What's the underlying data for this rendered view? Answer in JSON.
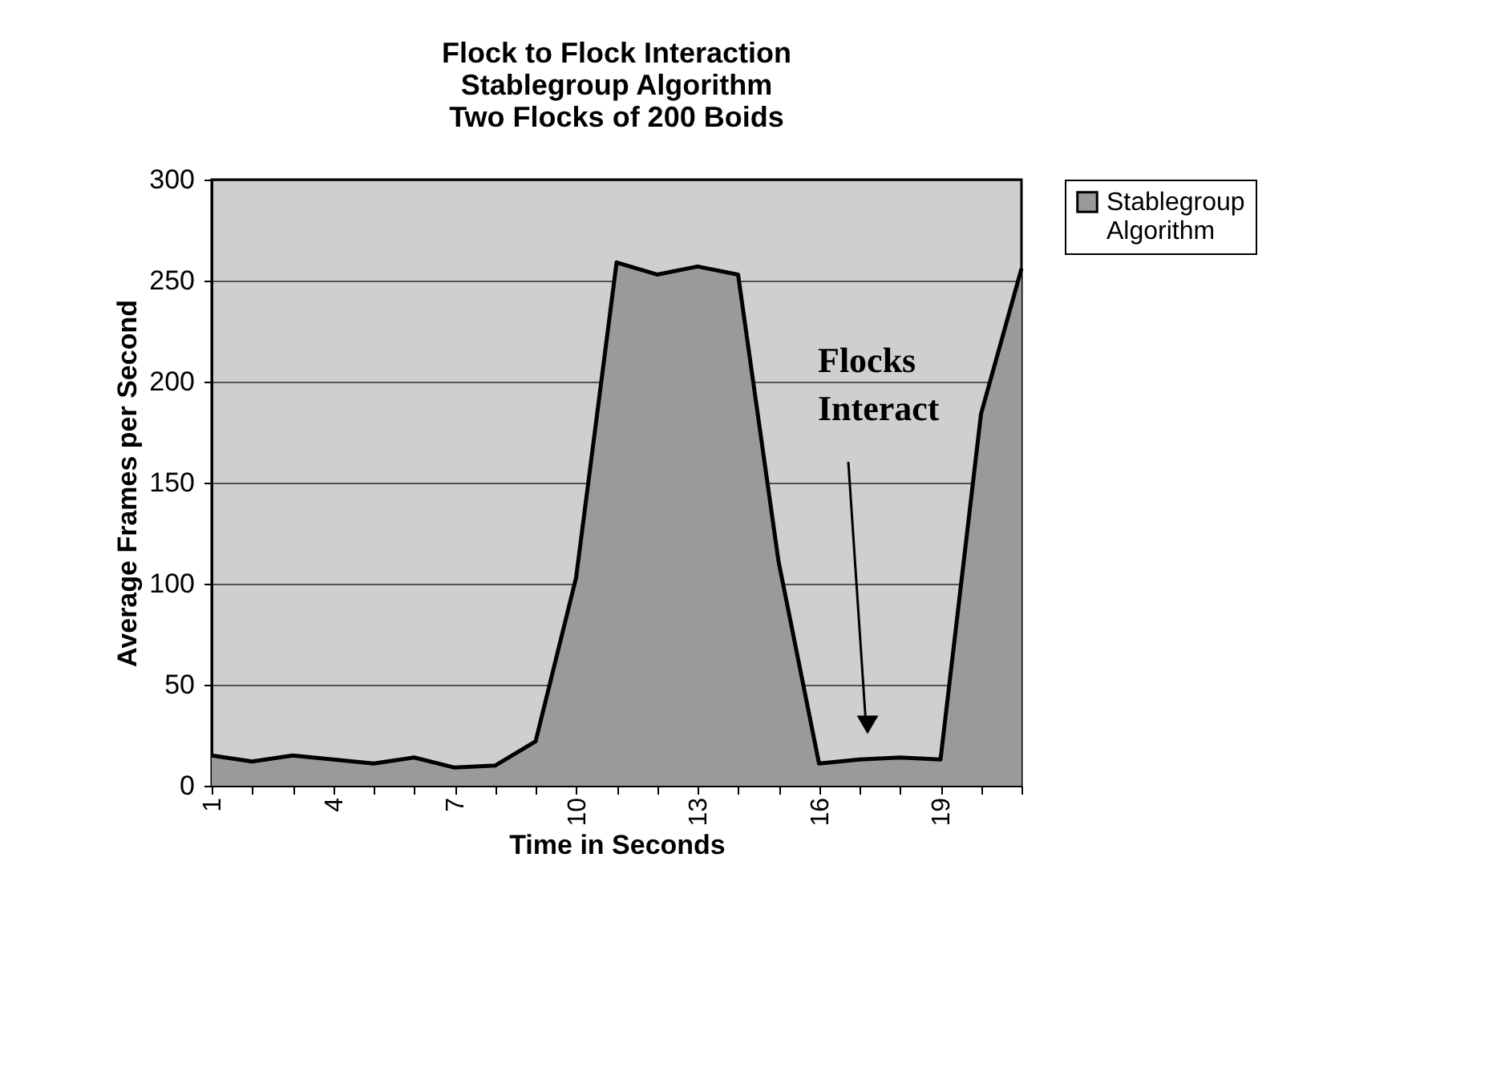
{
  "chart_data": {
    "type": "area",
    "title": "Flock to Flock Interaction\nStablegroup Algorithm\nTwo Flocks of 200 Boids",
    "xlabel": "Time in Seconds",
    "ylabel": "Average Frames per Second",
    "categories": [
      "1",
      null,
      null,
      "4",
      null,
      null,
      "7",
      null,
      null,
      "10",
      null,
      null,
      "13",
      null,
      null,
      "16",
      null,
      null,
      "19",
      null,
      null
    ],
    "series": [
      {
        "name": "Stablegroup Algorithm",
        "color": "#9a9a9a",
        "values": [
          15,
          12,
          15,
          13,
          11,
          14,
          9,
          10,
          22,
          103,
          259,
          253,
          257,
          253,
          111,
          11,
          13,
          14,
          13,
          184,
          256
        ]
      }
    ],
    "ylim": [
      0,
      300
    ],
    "yticks": [
      0,
      50,
      100,
      150,
      200,
      250,
      300
    ],
    "grid": "y",
    "legend": "right",
    "annotations": [
      "Flocks\nInteract"
    ]
  }
}
